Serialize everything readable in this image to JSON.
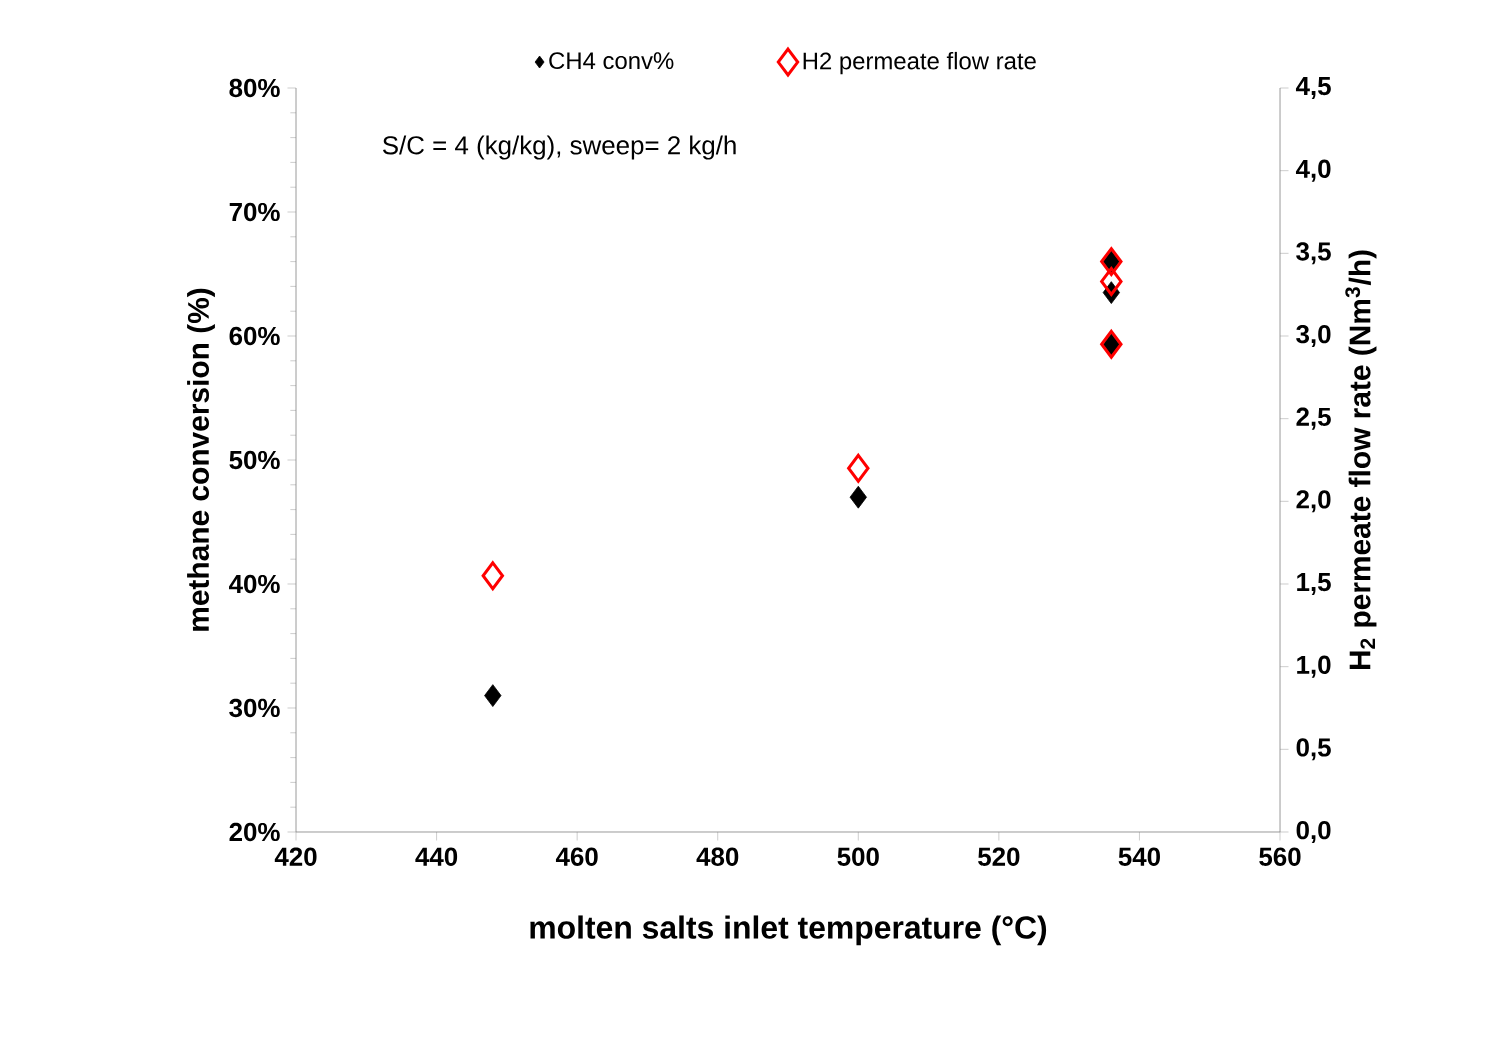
{
  "chart_data": {
    "type": "scatter",
    "marker": "diamond",
    "legend": "top",
    "xlabel": "molten salts inlet temperature (°C)",
    "ylabel": "methane conversion (%)",
    "y2label": "H$_{2}$ permeate flow rate (Nm$^{3}$/h)",
    "annotations": [
      "S/C = 4 (kg/kg), sweep= 2 kg/h"
    ],
    "xlim": [
      420,
      560
    ],
    "xticks": [
      420,
      440,
      460,
      480,
      500,
      520,
      540,
      560
    ],
    "ylim": [
      20,
      80
    ],
    "yticks": [
      {
        "value": 20,
        "label": "20%"
      },
      {
        "value": 30,
        "label": "30%"
      },
      {
        "value": 40,
        "label": "40%"
      },
      {
        "value": 50,
        "label": "50%"
      },
      {
        "value": 60,
        "label": "60%"
      },
      {
        "value": 70,
        "label": "70%"
      },
      {
        "value": 80,
        "label": "80%"
      }
    ],
    "y2lim": [
      0,
      4.5
    ],
    "y2ticks": [
      {
        "value": 0,
        "label": "0,0"
      },
      {
        "value": 0.5,
        "label": "0,5"
      },
      {
        "value": 1,
        "label": "1,0"
      },
      {
        "value": 1.5,
        "label": "1,5"
      },
      {
        "value": 2,
        "label": "2,0"
      },
      {
        "value": 2.5,
        "label": "2,5"
      },
      {
        "value": 3,
        "label": "3,0"
      },
      {
        "value": 3.5,
        "label": "3,5"
      },
      {
        "value": 4,
        "label": "4,0"
      },
      {
        "value": 4.5,
        "label": "4,5"
      }
    ],
    "series": [
      {
        "name": "CH4 conv%",
        "color": "#000000",
        "x": [
          448,
          500,
          536,
          536,
          536
        ],
        "values": [
          31,
          47,
          59.3,
          63.5,
          66
        ]
      },
      {
        "name": "H2 permeate flow rate",
        "color": "#ff0000",
        "axis": "y2",
        "x": [
          448,
          500,
          536,
          536,
          536
        ],
        "values": [
          1.55,
          2.2,
          2.95,
          3.33,
          3.45
        ]
      }
    ]
  }
}
